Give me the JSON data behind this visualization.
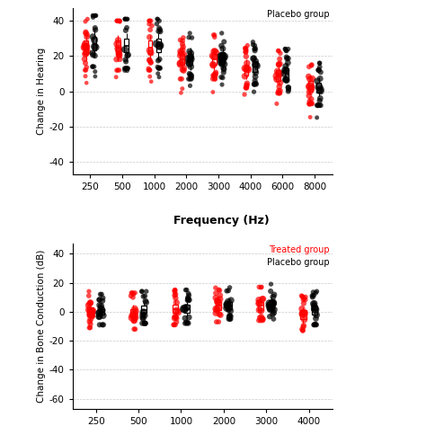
{
  "upper": {
    "freqs": [
      250,
      500,
      1000,
      2000,
      3000,
      4000,
      6000,
      8000
    ],
    "ylabel": "Change in Hearing",
    "xlabel": "Frequency (Hz)",
    "ylim": [
      -47,
      47
    ],
    "yticks": [
      -40,
      -20,
      0,
      20,
      40
    ],
    "legend_top": "Placebo group",
    "treated_boxes": [
      {
        "med": 25,
        "q1": 21,
        "q3": 29,
        "whislo": 17,
        "whishi": 33
      },
      {
        "med": 25,
        "q1": 21,
        "q3": 29,
        "whislo": 17,
        "whishi": 32
      },
      {
        "med": 25,
        "q1": 21,
        "q3": 29,
        "whislo": 17,
        "whishi": 32
      },
      {
        "med": 18,
        "q1": 15,
        "q3": 21,
        "whislo": 12,
        "whishi": 25
      },
      {
        "med": 18,
        "q1": 15,
        "q3": 21,
        "whislo": 12,
        "whishi": 24
      },
      {
        "med": 12,
        "q1": 9,
        "q3": 15,
        "whislo": 7,
        "whishi": 18
      },
      {
        "med": 9,
        "q1": 6,
        "q3": 12,
        "whislo": 4,
        "whishi": 15
      },
      {
        "med": 3,
        "q1": 0,
        "q3": 6,
        "whislo": -2,
        "whishi": 9
      }
    ],
    "placebo_boxes": [
      {
        "med": 27,
        "q1": 23,
        "q3": 31,
        "whislo": 19,
        "whishi": 35
      },
      {
        "med": 26,
        "q1": 22,
        "q3": 30,
        "whislo": 18,
        "whishi": 33
      },
      {
        "med": 26,
        "q1": 22,
        "q3": 30,
        "whislo": 18,
        "whishi": 33
      },
      {
        "med": 18,
        "q1": 15,
        "q3": 21,
        "whislo": 12,
        "whishi": 25
      },
      {
        "med": 19,
        "q1": 16,
        "q3": 22,
        "whislo": 13,
        "whishi": 25
      },
      {
        "med": 14,
        "q1": 11,
        "q3": 17,
        "whislo": 9,
        "whishi": 20
      },
      {
        "med": 10,
        "q1": 7,
        "q3": 13,
        "whislo": 5,
        "whishi": 16
      },
      {
        "med": 2,
        "q1": -1,
        "q3": 5,
        "whislo": -3,
        "whishi": 8
      }
    ]
  },
  "lower": {
    "freqs": [
      250,
      500,
      1000,
      2000,
      3000,
      4000
    ],
    "ylabel": "Change in Bone Conduction (dB)",
    "ylim": [
      -67,
      47
    ],
    "yticks": [
      -60,
      -40,
      -20,
      0,
      20,
      40
    ],
    "legend_treated": "Treated group",
    "legend_placebo": "Placebo group",
    "treated_boxes": [
      {
        "med": 0,
        "q1": -3,
        "q3": 3,
        "whislo": -6,
        "whishi": 6
      },
      {
        "med": -1,
        "q1": -4,
        "q3": 2,
        "whislo": -7,
        "whishi": 5
      },
      {
        "med": 2,
        "q1": -1,
        "q3": 5,
        "whislo": -4,
        "whishi": 8
      },
      {
        "med": 4,
        "q1": 1,
        "q3": 7,
        "whislo": -2,
        "whishi": 10
      },
      {
        "med": 4,
        "q1": 1,
        "q3": 7,
        "whislo": -1,
        "whishi": 9
      },
      {
        "med": -2,
        "q1": -5,
        "q3": 1,
        "whislo": -8,
        "whishi": 3
      }
    ],
    "placebo_boxes": [
      {
        "med": 0,
        "q1": -2,
        "q3": 2,
        "whislo": -4,
        "whishi": 4
      },
      {
        "med": 1,
        "q1": -1,
        "q3": 4,
        "whislo": -3,
        "whishi": 6
      },
      {
        "med": 2,
        "q1": -1,
        "q3": 5,
        "whislo": -3,
        "whishi": 7
      },
      {
        "med": 4,
        "q1": 2,
        "q3": 7,
        "whislo": 0,
        "whishi": 9
      },
      {
        "med": 5,
        "q1": 2,
        "q3": 8,
        "whislo": 0,
        "whishi": 11
      },
      {
        "med": 1,
        "q1": -2,
        "q3": 4,
        "whislo": -4,
        "whishi": 6
      }
    ]
  },
  "treated_color": "#FF0000",
  "placebo_color": "#000000",
  "bg_color": "#FFFFFF",
  "grid_color": "#BBBBBB"
}
